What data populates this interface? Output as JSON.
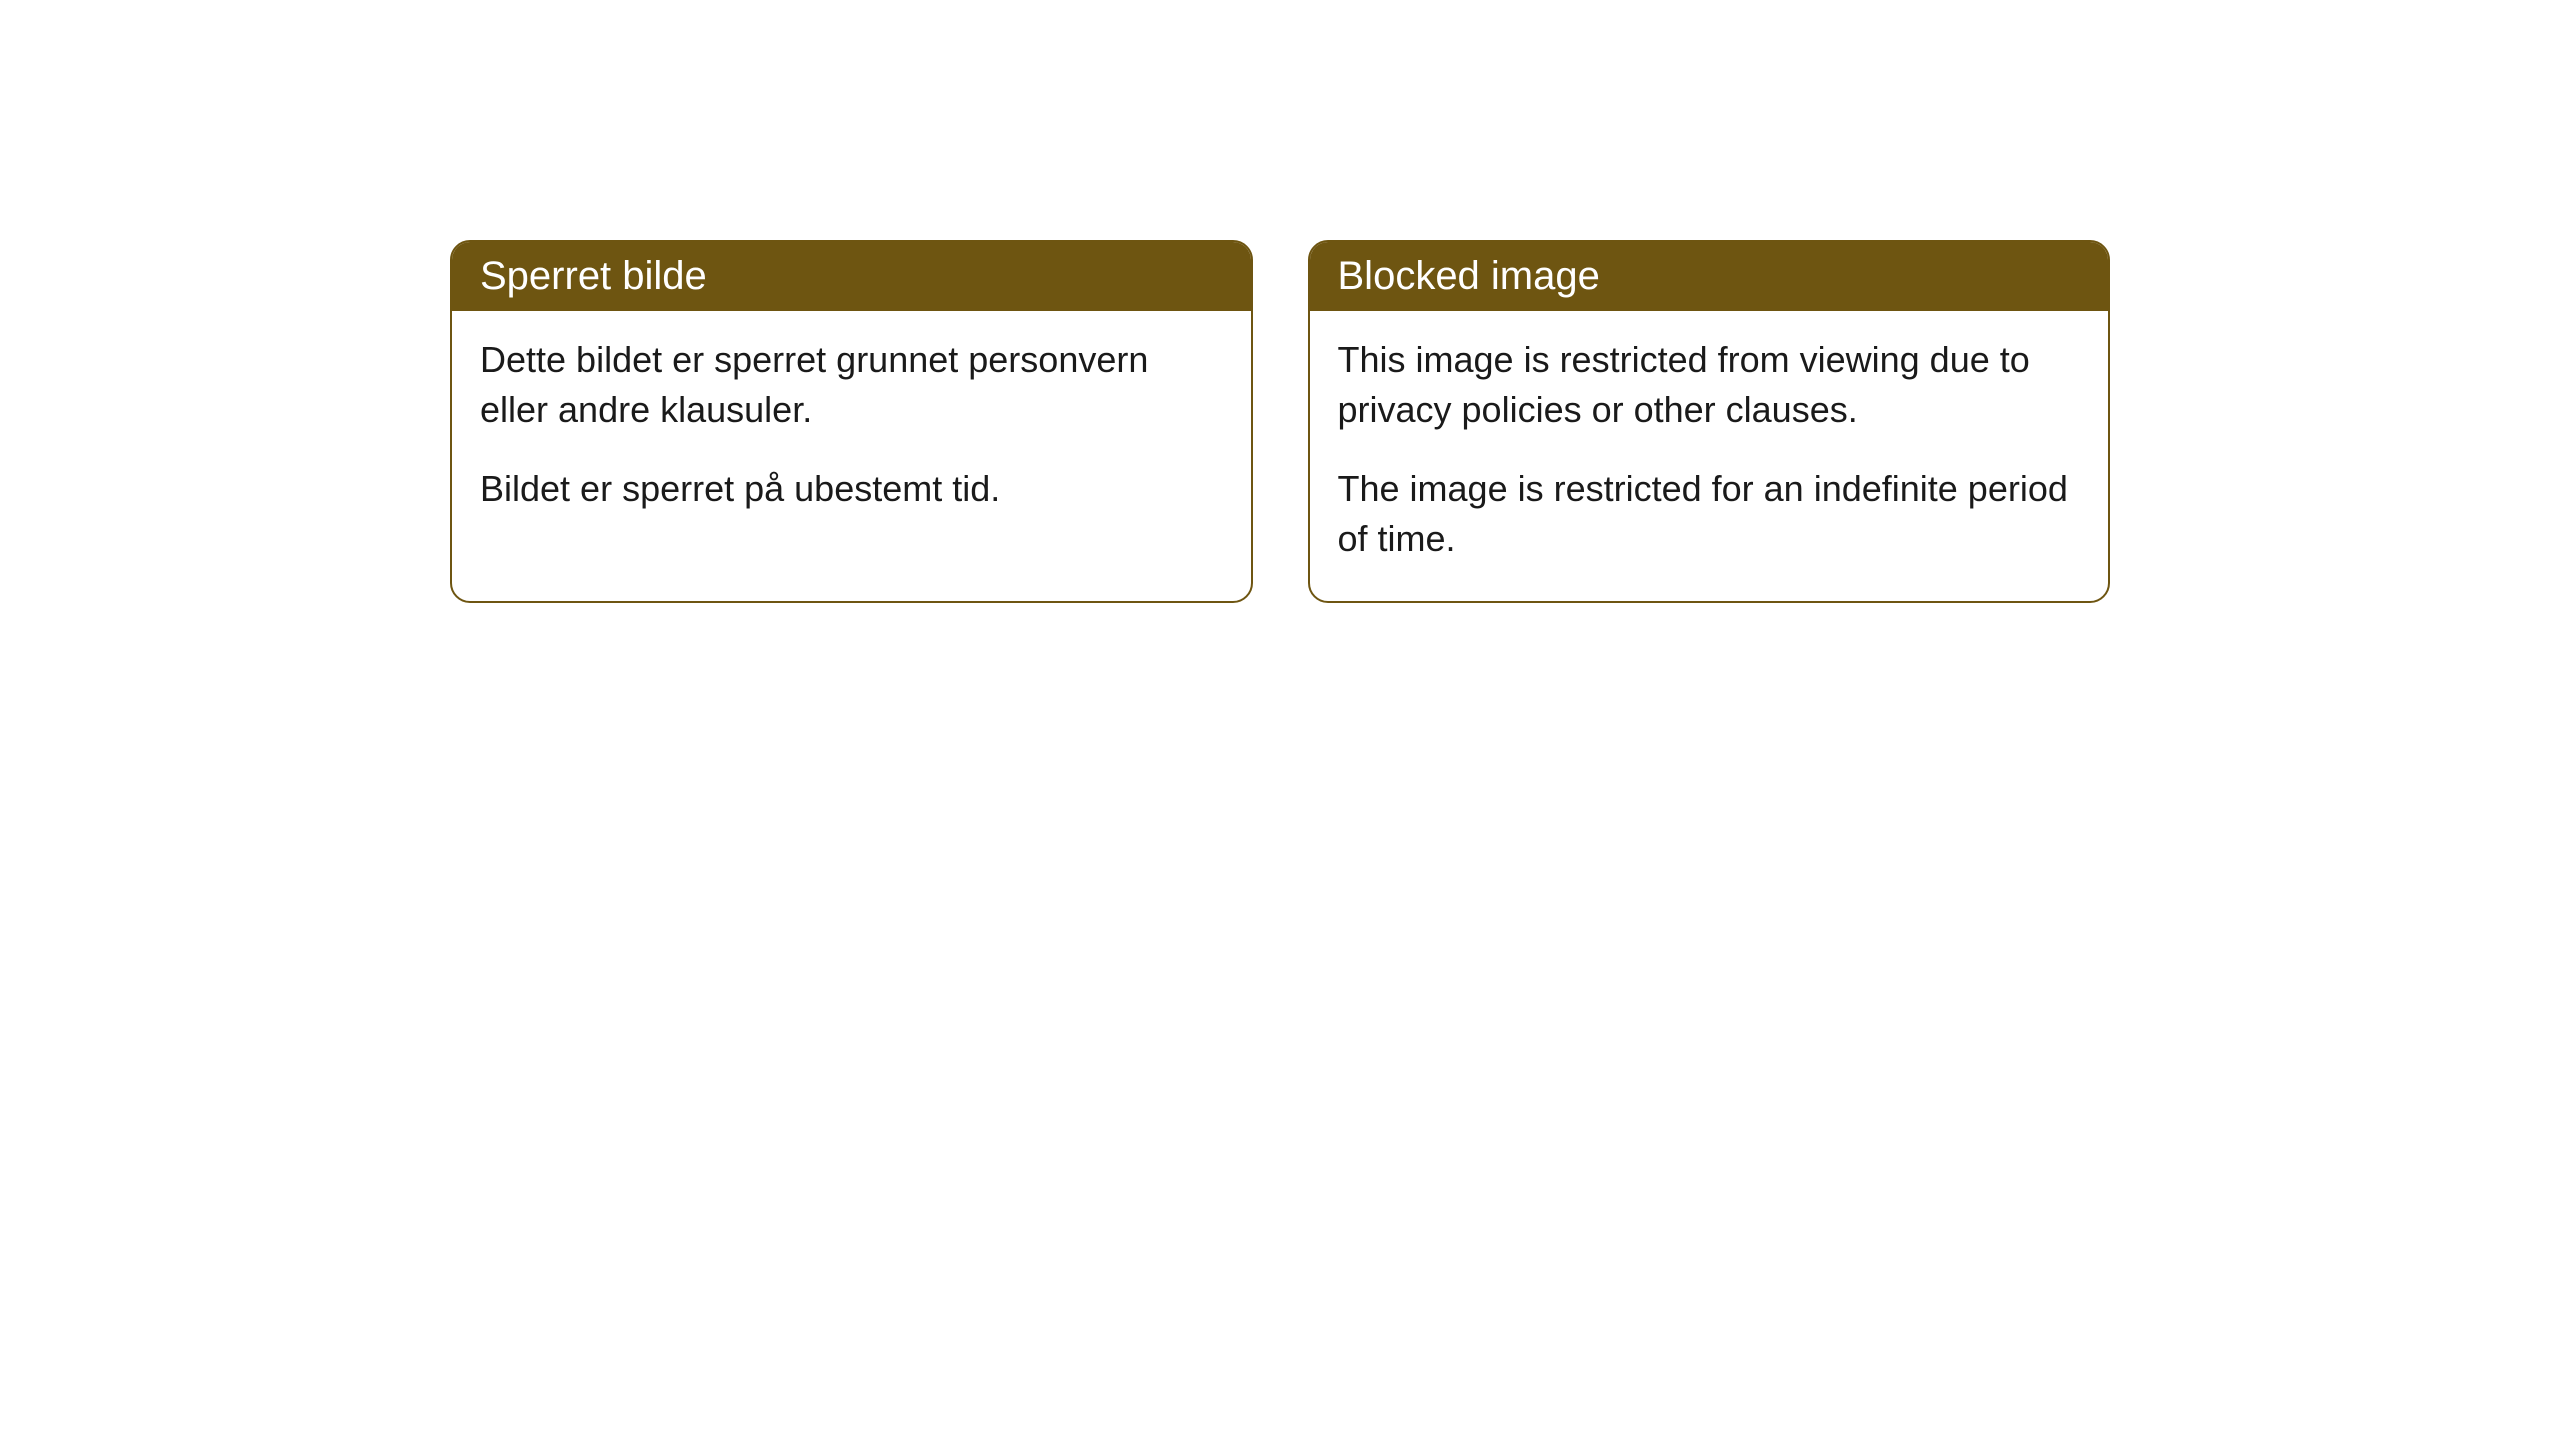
{
  "cards": [
    {
      "title": "Sperret bilde",
      "paragraph1": "Dette bildet er sperret grunnet personvern eller andre klausuler.",
      "paragraph2": "Bildet er sperret på ubestemt tid."
    },
    {
      "title": "Blocked image",
      "paragraph1": "This image is restricted from viewing due to privacy policies or other clauses.",
      "paragraph2": "The image is restricted for an indefinite period of time."
    }
  ],
  "styling": {
    "header_bg_color": "#6e5511",
    "header_text_color": "#ffffff",
    "border_color": "#6e5511",
    "body_bg_color": "#ffffff",
    "body_text_color": "#1a1a1a",
    "border_radius": 20,
    "header_fontsize": 40,
    "body_fontsize": 36
  }
}
